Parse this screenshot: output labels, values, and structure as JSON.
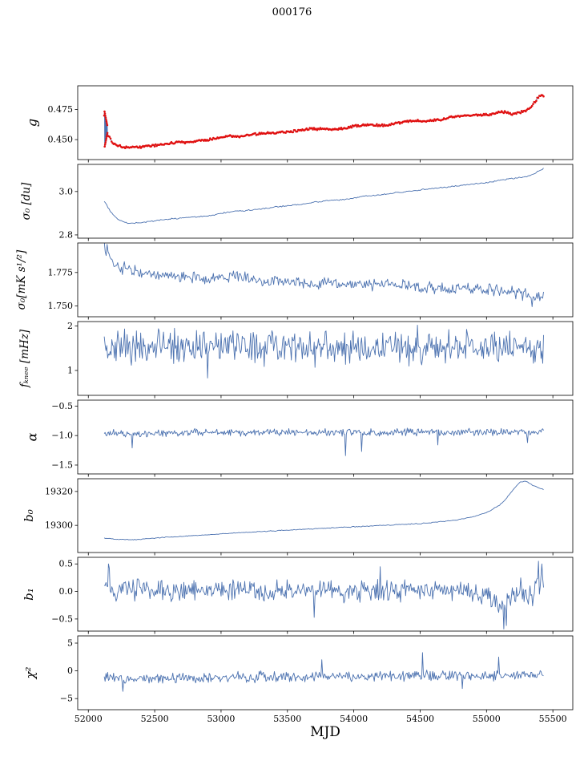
{
  "chart_data": {
    "type": "line",
    "title": "000176",
    "xlabel": "MJD",
    "xlim": [
      51920,
      55650
    ],
    "x_data_range": [
      52120,
      55430
    ],
    "x_ticks": [
      {
        "v": 52000,
        "label": "52000"
      },
      {
        "v": 52500,
        "label": "52500"
      },
      {
        "v": 53000,
        "label": "53000"
      },
      {
        "v": 53500,
        "label": "53500"
      },
      {
        "v": 54000,
        "label": "54000"
      },
      {
        "v": 54500,
        "label": "54500"
      },
      {
        "v": 55000,
        "label": "55000"
      },
      {
        "v": 55500,
        "label": "55500"
      }
    ],
    "colors": {
      "line": "#4c72b0",
      "scatter": "#e01010",
      "axis": "#000000"
    },
    "panels": [
      {
        "id": "g",
        "ylabel": "g",
        "ylim": [
          0.4335,
          0.4945
        ],
        "yticks": [
          {
            "v": 0.475,
            "label": "0.475"
          },
          {
            "v": 0.45,
            "label": "0.450"
          }
        ],
        "trend": [
          [
            52120,
            0.47
          ],
          [
            52140,
            0.456
          ],
          [
            52180,
            0.448
          ],
          [
            52230,
            0.4447
          ],
          [
            52300,
            0.4436
          ],
          [
            52400,
            0.4441
          ],
          [
            52500,
            0.4452
          ],
          [
            52620,
            0.447
          ],
          [
            52700,
            0.4478
          ],
          [
            52800,
            0.4486
          ],
          [
            52900,
            0.4496
          ],
          [
            53000,
            0.4521
          ],
          [
            53060,
            0.453
          ],
          [
            53150,
            0.4527
          ],
          [
            53250,
            0.4543
          ],
          [
            53350,
            0.4556
          ],
          [
            53450,
            0.4561
          ],
          [
            53550,
            0.4571
          ],
          [
            53650,
            0.4588
          ],
          [
            53750,
            0.4591
          ],
          [
            53850,
            0.4583
          ],
          [
            53950,
            0.4601
          ],
          [
            54050,
            0.462
          ],
          [
            54150,
            0.4623
          ],
          [
            54250,
            0.4619
          ],
          [
            54350,
            0.4641
          ],
          [
            54450,
            0.4658
          ],
          [
            54550,
            0.4651
          ],
          [
            54650,
            0.4663
          ],
          [
            54750,
            0.469
          ],
          [
            54850,
            0.47
          ],
          [
            54950,
            0.4703
          ],
          [
            55050,
            0.4709
          ],
          [
            55100,
            0.4728
          ],
          [
            55150,
            0.4726
          ],
          [
            55200,
            0.4709
          ],
          [
            55250,
            0.4726
          ],
          [
            55300,
            0.4736
          ],
          [
            55350,
            0.4788
          ],
          [
            55400,
            0.4868
          ],
          [
            55430,
            0.4862
          ]
        ],
        "noise": 0.0012,
        "n": 420,
        "scatter": true,
        "spike": {
          "x": [
            52122,
            52144
          ],
          "y": [
            0.4435,
            0.4732
          ]
        }
      },
      {
        "id": "sigma0-du",
        "ylabel": "σ₀ [du]",
        "ylim": [
          2.785,
          3.125
        ],
        "yticks": [
          {
            "v": 3.0,
            "label": "3.0"
          },
          {
            "v": 2.8,
            "label": "2.8"
          }
        ],
        "trend": [
          [
            52120,
            2.955
          ],
          [
            52170,
            2.905
          ],
          [
            52230,
            2.868
          ],
          [
            52300,
            2.853
          ],
          [
            52400,
            2.857
          ],
          [
            52500,
            2.865
          ],
          [
            52600,
            2.872
          ],
          [
            52700,
            2.878
          ],
          [
            52800,
            2.883
          ],
          [
            52900,
            2.887
          ],
          [
            53000,
            2.9
          ],
          [
            53100,
            2.91
          ],
          [
            53200,
            2.913
          ],
          [
            53300,
            2.92
          ],
          [
            53400,
            2.928
          ],
          [
            53500,
            2.935
          ],
          [
            53600,
            2.94
          ],
          [
            53700,
            2.95
          ],
          [
            53800,
            2.958
          ],
          [
            53900,
            2.962
          ],
          [
            54000,
            2.97
          ],
          [
            54100,
            2.98
          ],
          [
            54200,
            2.985
          ],
          [
            54300,
            2.993
          ],
          [
            54400,
            3.0
          ],
          [
            54500,
            3.008
          ],
          [
            54600,
            3.015
          ],
          [
            54700,
            3.02
          ],
          [
            54800,
            3.028
          ],
          [
            54900,
            3.035
          ],
          [
            55000,
            3.04
          ],
          [
            55100,
            3.052
          ],
          [
            55200,
            3.06
          ],
          [
            55300,
            3.068
          ],
          [
            55350,
            3.08
          ],
          [
            55430,
            3.105
          ]
        ],
        "noise": 0.0035,
        "n": 360,
        "scatter": false
      },
      {
        "id": "sigma0-mK",
        "ylabel": "σ₀[mK s¹/²]",
        "ylim": [
          1.742,
          1.797
        ],
        "yticks": [
          {
            "v": 1.775,
            "label": "1.775"
          },
          {
            "v": 1.75,
            "label": "1.750"
          }
        ],
        "trend": [
          [
            52120,
            1.795
          ],
          [
            52150,
            1.788
          ],
          [
            52200,
            1.78
          ],
          [
            52300,
            1.778
          ],
          [
            52400,
            1.775
          ],
          [
            52500,
            1.773
          ],
          [
            52700,
            1.772
          ],
          [
            52900,
            1.771
          ],
          [
            53100,
            1.772
          ],
          [
            53300,
            1.77
          ],
          [
            53500,
            1.768
          ],
          [
            53700,
            1.766
          ],
          [
            53900,
            1.767
          ],
          [
            54100,
            1.766
          ],
          [
            54300,
            1.766
          ],
          [
            54500,
            1.764
          ],
          [
            54700,
            1.763
          ],
          [
            54900,
            1.763
          ],
          [
            55100,
            1.761
          ],
          [
            55250,
            1.76
          ],
          [
            55350,
            1.756
          ],
          [
            55430,
            1.757
          ]
        ],
        "noise": 0.0055,
        "n": 460,
        "scatter": false,
        "outliers": [
          [
            52140,
            1.796
          ],
          [
            55340,
            1.7495
          ]
        ]
      },
      {
        "id": "fknee",
        "ylabel": "fₖₙₑₑ [mHz]",
        "ylim": [
          0.44,
          2.1
        ],
        "yticks": [
          {
            "v": 2,
            "label": "2"
          },
          {
            "v": 1,
            "label": "1"
          }
        ],
        "trend": [
          [
            52120,
            1.56
          ],
          [
            52600,
            1.52
          ],
          [
            55430,
            1.5
          ]
        ],
        "noise": 0.45,
        "n": 520,
        "scatter": false,
        "outliers": [
          [
            52900,
            0.83
          ],
          [
            54480,
            2.02
          ]
        ]
      },
      {
        "id": "alpha",
        "ylabel": "α",
        "ylim": [
          -1.65,
          -0.4
        ],
        "yticks": [
          {
            "v": -0.5,
            "label": "−0.5"
          },
          {
            "v": -1.0,
            "label": "−1.0"
          },
          {
            "v": -1.5,
            "label": "−1.5"
          }
        ],
        "trend": [
          [
            52120,
            -0.96
          ],
          [
            53000,
            -0.95
          ],
          [
            55430,
            -0.94
          ]
        ],
        "noise": 0.075,
        "n": 520,
        "scatter": false,
        "outliers": [
          [
            52330,
            -1.21
          ],
          [
            53940,
            -1.34
          ],
          [
            54060,
            -1.27
          ],
          [
            54630,
            -1.16
          ],
          [
            55310,
            -1.12
          ]
        ]
      },
      {
        "id": "b0",
        "ylabel": "b₀",
        "ylim": [
          19284,
          19327.5
        ],
        "yticks": [
          {
            "v": 19320,
            "label": "19320"
          },
          {
            "v": 19300,
            "label": "19300"
          }
        ],
        "trend": [
          [
            52120,
            19292.5
          ],
          [
            52200,
            19291.8
          ],
          [
            52350,
            19291.5
          ],
          [
            52500,
            19292.5
          ],
          [
            52700,
            19293.5
          ],
          [
            52900,
            19294.5
          ],
          [
            53100,
            19295.5
          ],
          [
            53300,
            19296.3
          ],
          [
            53500,
            19297.2
          ],
          [
            53700,
            19298.0
          ],
          [
            53900,
            19298.8
          ],
          [
            54100,
            19299.5
          ],
          [
            54300,
            19300.3
          ],
          [
            54500,
            19301.0
          ],
          [
            54700,
            19302.5
          ],
          [
            54800,
            19303.5
          ],
          [
            54900,
            19305.0
          ],
          [
            55000,
            19307.5
          ],
          [
            55100,
            19312.0
          ],
          [
            55150,
            19316.0
          ],
          [
            55200,
            19321.0
          ],
          [
            55250,
            19325.5
          ],
          [
            55300,
            19326.0
          ],
          [
            55350,
            19323.5
          ],
          [
            55430,
            19321.0
          ]
        ],
        "noise": 0.3,
        "n": 360,
        "scatter": false
      },
      {
        "id": "b1",
        "ylabel": "b₁",
        "ylim": [
          -0.72,
          0.62
        ],
        "yticks": [
          {
            "v": 0.5,
            "label": "0.5"
          },
          {
            "v": 0.0,
            "label": "0.0"
          },
          {
            "v": -0.5,
            "label": "−0.5"
          }
        ],
        "trend": [
          [
            52120,
            0.03
          ],
          [
            54900,
            0.0
          ],
          [
            55020,
            -0.1
          ],
          [
            55120,
            -0.28
          ],
          [
            55220,
            -0.05
          ],
          [
            55430,
            0.12
          ]
        ],
        "noise": 0.24,
        "n": 520,
        "scatter": false,
        "noise_zones": [
          [
            55240,
            0.34
          ]
        ],
        "outliers": [
          [
            52150,
            0.5
          ],
          [
            52160,
            0.42
          ],
          [
            53700,
            -0.47
          ],
          [
            54200,
            0.45
          ],
          [
            55130,
            -0.68
          ],
          [
            55150,
            -0.62
          ],
          [
            55390,
            0.55
          ],
          [
            55420,
            0.5
          ]
        ]
      },
      {
        "id": "chi2",
        "ylabel": "χ²",
        "ylim": [
          -7,
          6.3
        ],
        "yticks": [
          {
            "v": 5,
            "label": "5"
          },
          {
            "v": 0,
            "label": "0"
          },
          {
            "v": -5,
            "label": "−5"
          }
        ],
        "trend": [
          [
            52120,
            -0.9
          ],
          [
            52300,
            -1.6
          ],
          [
            52600,
            -1.3
          ],
          [
            53000,
            -1.1
          ],
          [
            54500,
            -0.9
          ],
          [
            55430,
            -0.7
          ]
        ],
        "noise": 1.1,
        "n": 520,
        "scatter": false,
        "outliers": [
          [
            52260,
            -3.7
          ],
          [
            53760,
            2.0
          ],
          [
            54520,
            3.3
          ],
          [
            54820,
            -3.2
          ],
          [
            55090,
            2.5
          ]
        ]
      }
    ]
  }
}
